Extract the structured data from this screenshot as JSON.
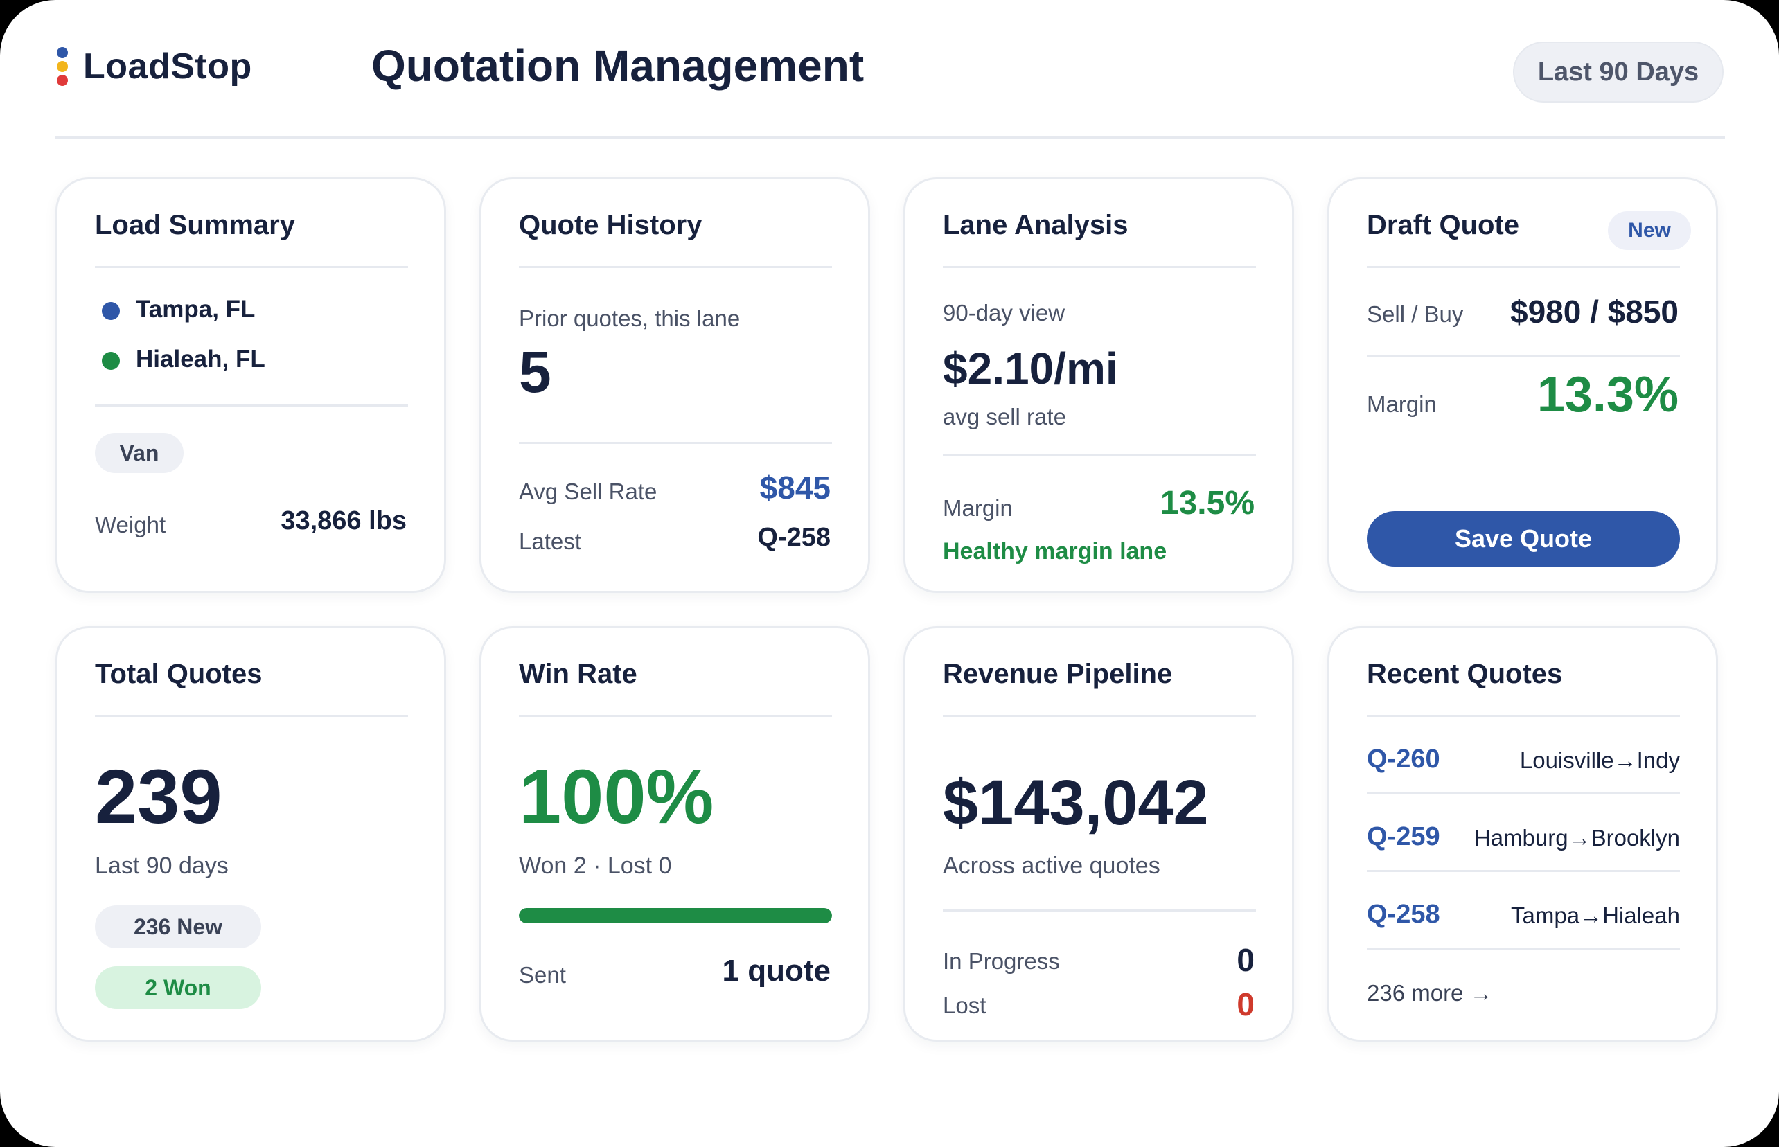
{
  "app": {
    "name": "LoadStop",
    "logo_colors": [
      "#2f57a8",
      "#f2b51c",
      "#e03a3a"
    ]
  },
  "header": {
    "title": "Quotation Management",
    "range_button": "Last 90 Days"
  },
  "load_summary": {
    "title": "Load Summary",
    "origin": "Tampa, FL",
    "destination": "Hialeah, FL",
    "equipment": "Van",
    "weight_label": "Weight",
    "weight_value": "33,866 lbs"
  },
  "quote_history": {
    "title": "Quote History",
    "prior_label": "Prior quotes, this lane",
    "prior_count": "5",
    "avg_label": "Avg Sell Rate",
    "avg_value": "$845",
    "latest_label": "Latest",
    "latest_value": "Q-258"
  },
  "lane_analysis": {
    "title": "Lane Analysis",
    "view_label": "90-day view",
    "rate": "$2.10/mi",
    "rate_label": "avg sell rate",
    "margin_label": "Margin",
    "margin_value": "13.5%",
    "status": "Healthy margin lane"
  },
  "draft_quote": {
    "title": "Draft Quote",
    "badge": "New",
    "sellbuy_label": "Sell / Buy",
    "sellbuy_value": "$980 / $850",
    "margin_label": "Margin",
    "margin_value": "13.3%",
    "save_button": "Save Quote"
  },
  "total_quotes": {
    "title": "Total Quotes",
    "count": "239",
    "period": "Last 90 days",
    "new_badge": "236 New",
    "won_badge": "2 Won"
  },
  "win_rate": {
    "title": "Win Rate",
    "value": "100%",
    "breakdown": "Won 2 · Lost 0",
    "progress": 1.0,
    "sent_label": "Sent",
    "sent_value": "1 quote"
  },
  "revenue_pipeline": {
    "title": "Revenue Pipeline",
    "amount": "$143,042",
    "caption": "Across active quotes",
    "in_progress_label": "In Progress",
    "in_progress_value": "0",
    "lost_label": "Lost",
    "lost_value": "0"
  },
  "recent_quotes": {
    "title": "Recent Quotes",
    "items": [
      {
        "id": "Q-260",
        "route": "Louisville→Indy"
      },
      {
        "id": "Q-259",
        "route": "Hamburg→Brooklyn"
      },
      {
        "id": "Q-258",
        "route": "Tampa→Hialeah"
      }
    ],
    "more_link": "236 more →"
  },
  "colors": {
    "accent": "#2f57a8",
    "success": "#1e8c45",
    "danger": "#cf3a2c",
    "text": "#17213d"
  }
}
